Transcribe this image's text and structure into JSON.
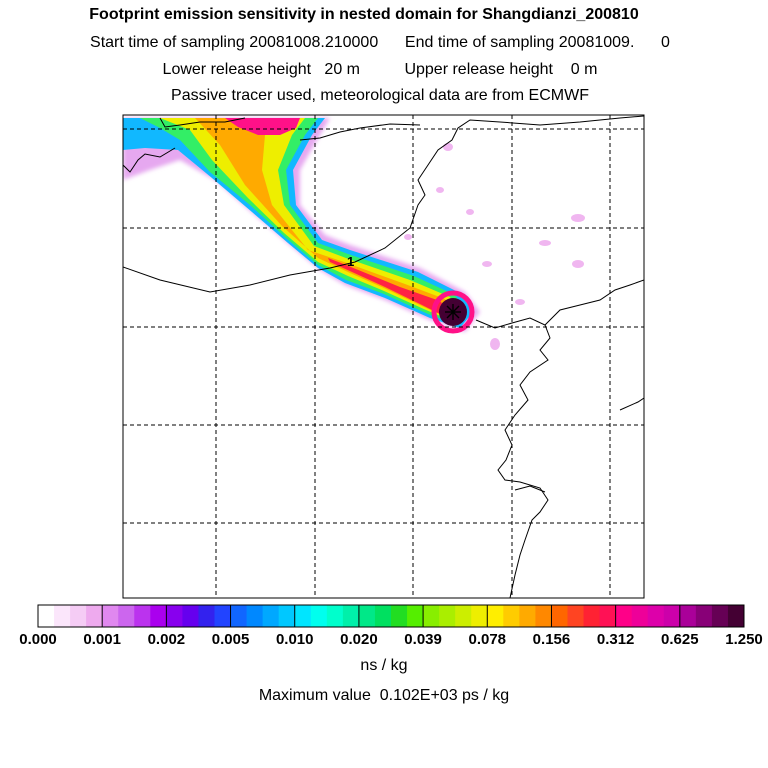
{
  "header": {
    "title": "Footprint emission sensitivity in nested domain for Shangdianzi_200810",
    "sampling_line": "Start time of sampling 20081008.210000      End time of sampling 20081009.      0",
    "release_line": "Lower release height   20 m          Upper release height    0 m",
    "tracer_line": "Passive tracer used, meteorological data are from ECMWF"
  },
  "map": {
    "marker_label": "1",
    "receptor_icon": "asterisk-marker-icon"
  },
  "colorbar": {
    "labels": [
      "0.000",
      "0.001",
      "0.002",
      "0.005",
      "0.010",
      "0.020",
      "0.039",
      "0.078",
      "0.156",
      "0.312",
      "0.625",
      "1.250"
    ],
    "colors": [
      "#ffffff",
      "#fbe6fb",
      "#f5ccf5",
      "#eeaaee",
      "#e088ef",
      "#cc66ee",
      "#bb33ee",
      "#aa00ee",
      "#8800ee",
      "#6600ee",
      "#3322ee",
      "#2244ff",
      "#1166ff",
      "#0088ff",
      "#00a8ff",
      "#00c8ff",
      "#00e5ff",
      "#00ffee",
      "#00ffcc",
      "#00f0aa",
      "#00e888",
      "#00e060",
      "#22dd22",
      "#55ee00",
      "#88ee00",
      "#aaee00",
      "#ccee00",
      "#eeee00",
      "#ffee00",
      "#ffcc00",
      "#ffaa00",
      "#ff8800",
      "#ff6600",
      "#ff4422",
      "#ff2233",
      "#ff1155",
      "#ff0088",
      "#ee0099",
      "#dd00aa",
      "#cc00aa",
      "#aa0099",
      "#880077",
      "#660055",
      "#440033"
    ],
    "units": "ns / kg"
  },
  "footer": {
    "max_value": "Maximum value  0.102E+03 ps / kg"
  }
}
